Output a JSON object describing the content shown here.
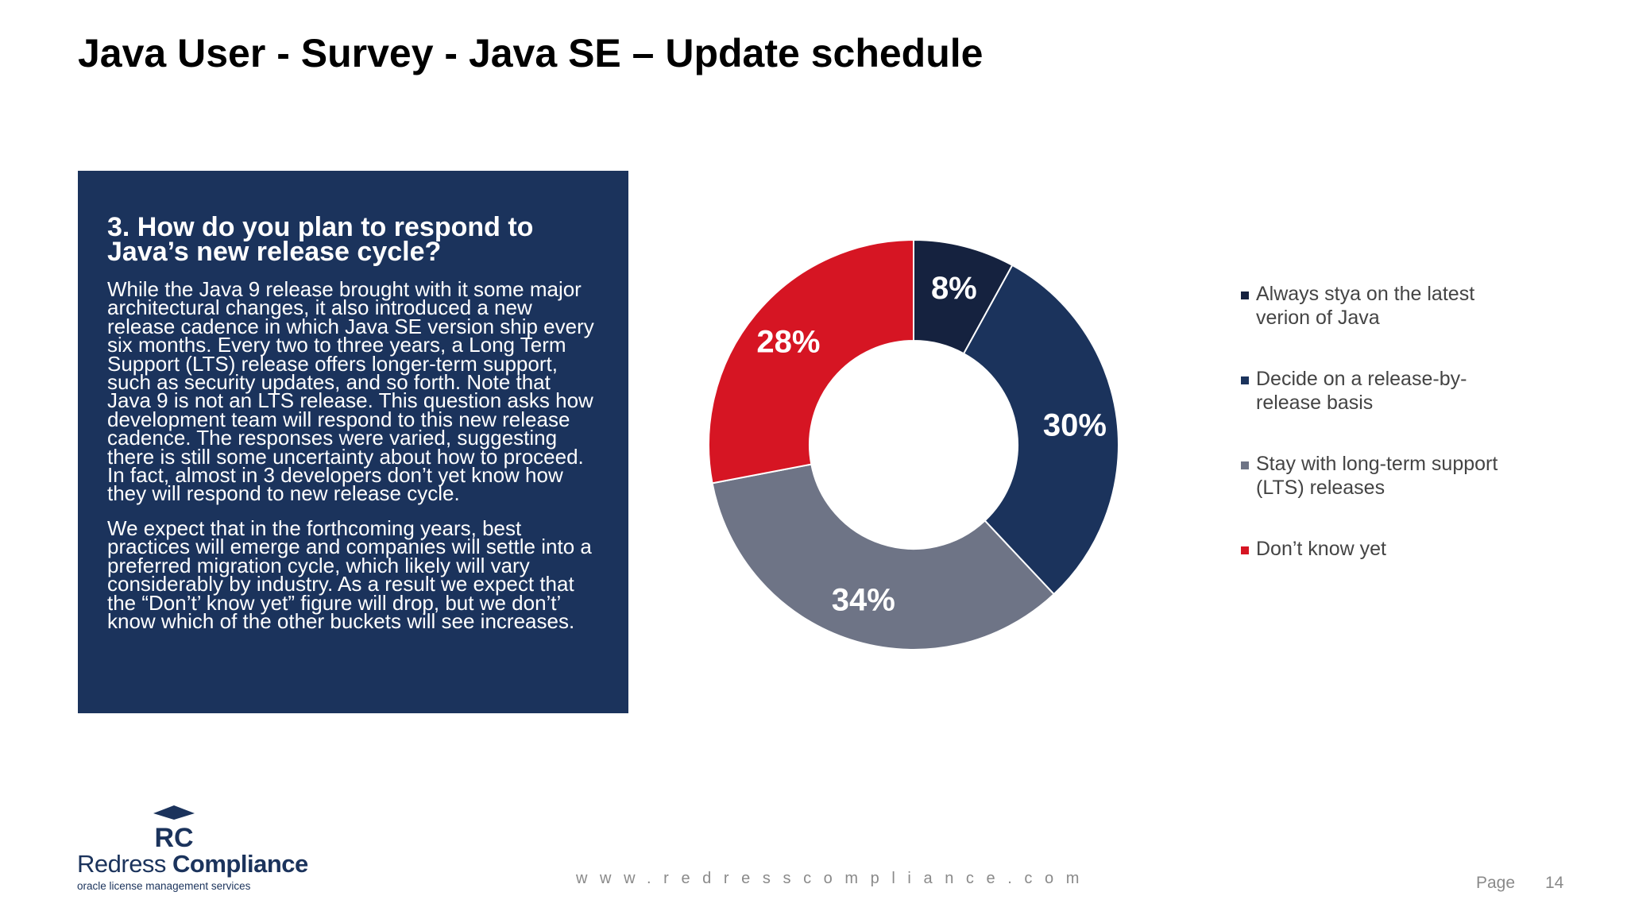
{
  "slide": {
    "title": "Java User - Survey -  Java SE – Update schedule",
    "question": "3. How do you plan to respond to Java’s new release cycle?",
    "paragraph1": "While the Java 9 release brought with it some major architectural changes, it also introduced a new release cadence in which Java SE version ship every six months. Every two to three years, a Long Term Support (LTS) release offers longer-term support, such as security updates, and so forth. Note that Java 9 is not an LTS release. This question asks how development team will respond to this new release cadence. The responses were varied, suggesting there is still some uncertainty about how to proceed. In fact, almost in 3 developers don’t yet know how they will respond to new release cycle.",
    "paragraph2": "We expect that in the forthcoming years, best practices will emerge and companies will settle into a preferred migration cycle, which likely will vary considerably by industry. As a result we expect that the “Don’t’ know yet” figure will drop, but we don’t’ know which of the other buckets will see increases."
  },
  "chart_data": {
    "type": "pie",
    "style": "donut",
    "categories": [
      "Always stya on the latest verion of Java",
      "Decide on a release-by-release basis",
      "Stay with long-term support (LTS) releases",
      "Don’t know yet"
    ],
    "values": [
      8,
      30,
      34,
      28
    ],
    "value_labels": [
      "8%",
      "30%",
      "34%",
      "28%"
    ],
    "colors": [
      "#15223f",
      "#1b335c",
      "#6e7486",
      "#d61523"
    ],
    "legend_position": "right"
  },
  "legend": {
    "items": [
      {
        "label": "Always stya on the latest verion of Java",
        "color": "#15223f"
      },
      {
        "label": "Decide on a release-by-release basis",
        "color": "#1b335c"
      },
      {
        "label": "Stay with long-term support (LTS) releases",
        "color": "#6e7486"
      },
      {
        "label": "Don’t know yet",
        "color": "#d61523"
      }
    ]
  },
  "footer": {
    "logo_mark": "RC",
    "logo_name_regular": "Redress ",
    "logo_name_bold": "Compliance",
    "logo_tagline": "oracle license management services",
    "url": "www.redresscompliance.com",
    "page_label": "Page",
    "page_number": "14"
  }
}
